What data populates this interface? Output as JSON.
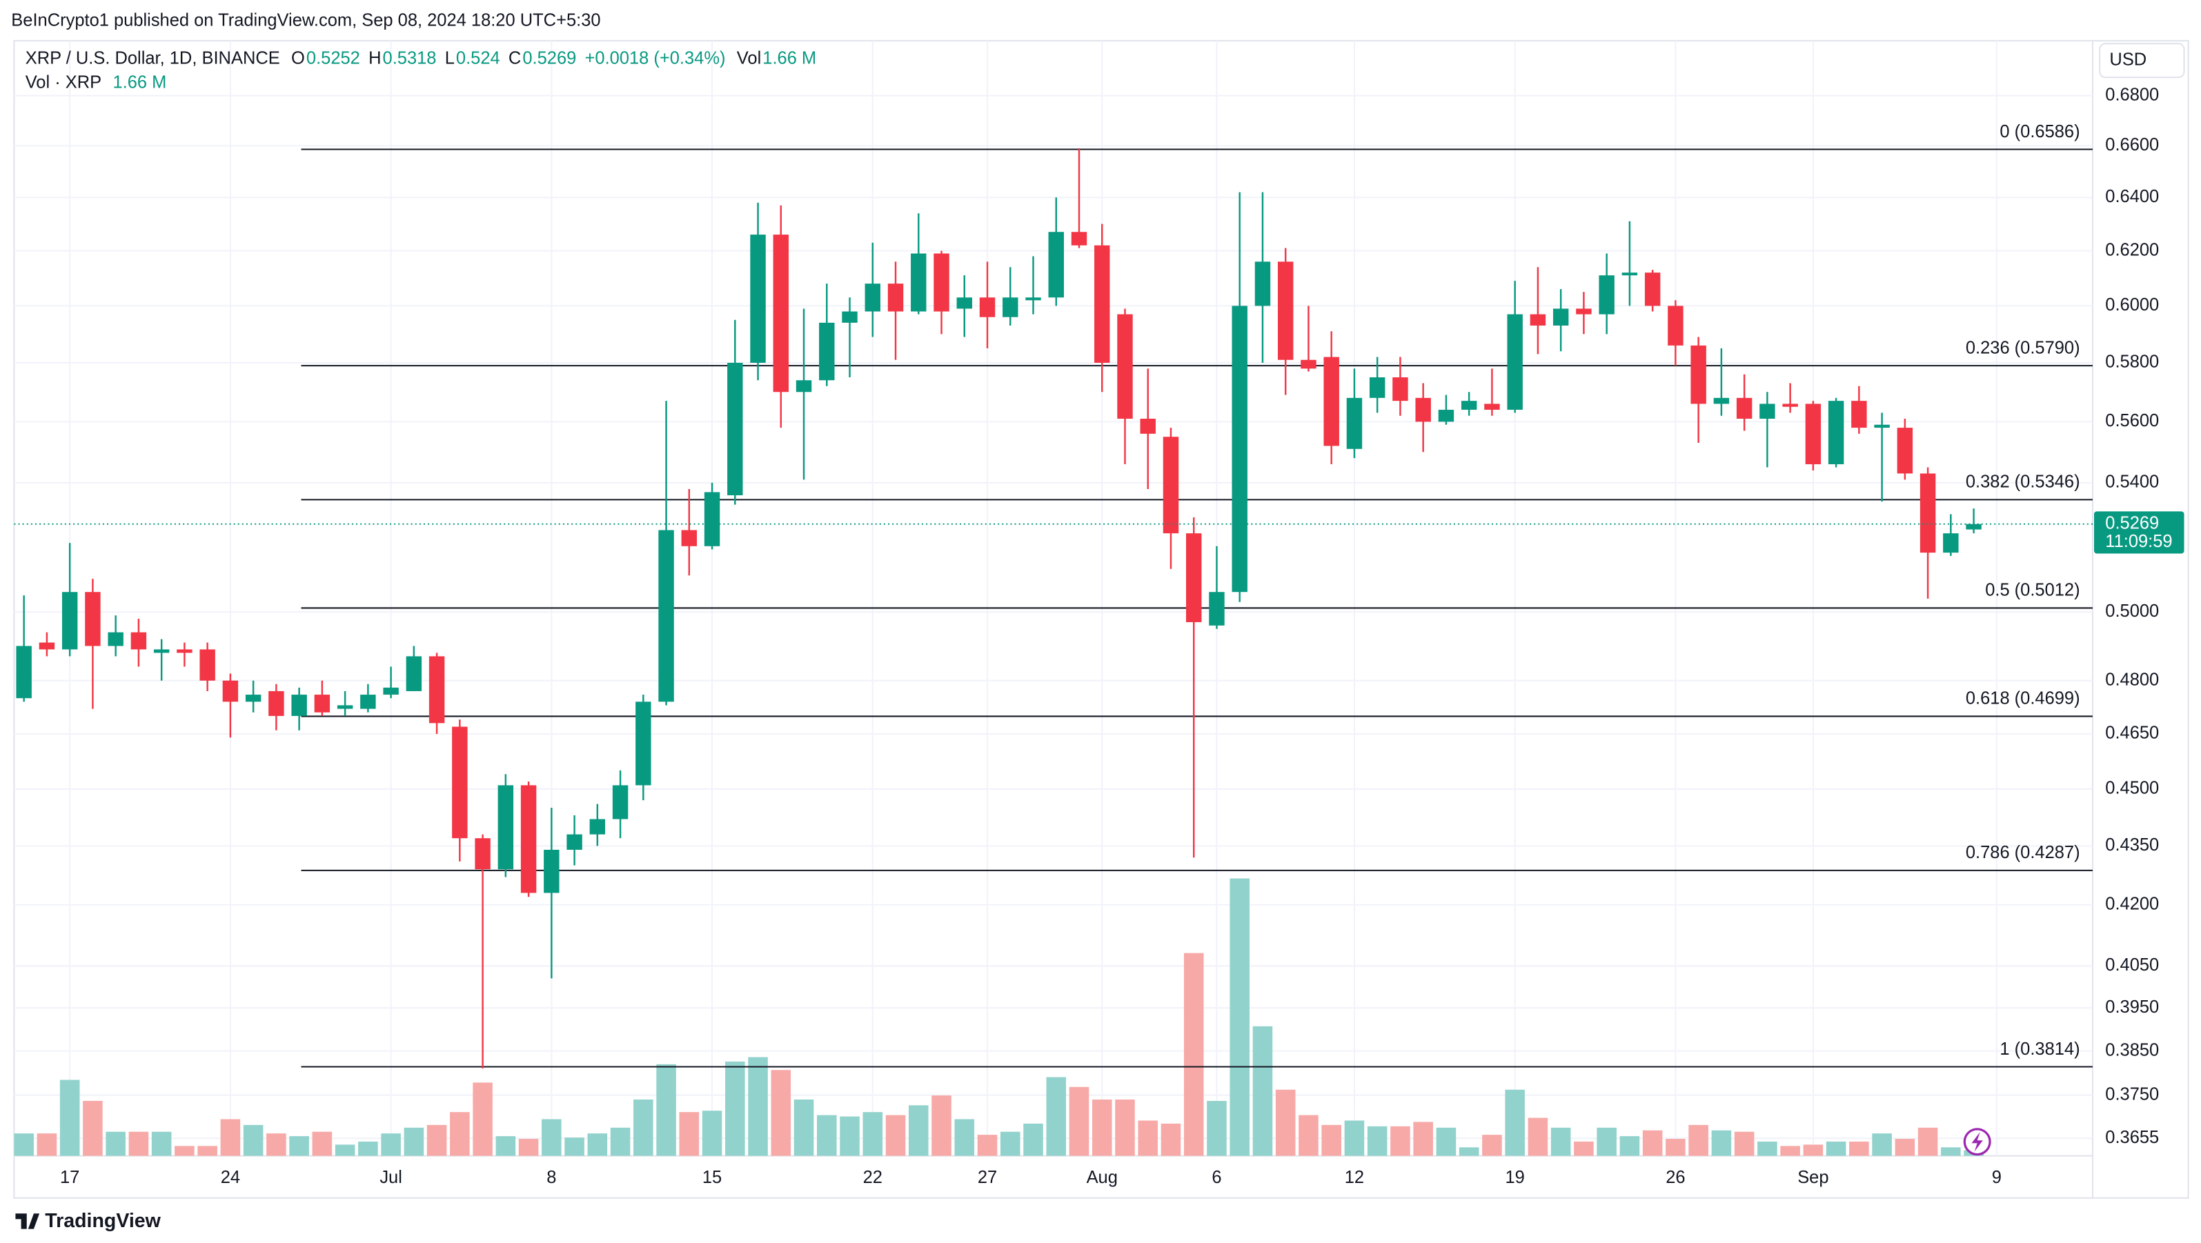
{
  "attribution": "BeInCrypto1 published on TradingView.com, Sep 08, 2024 18:20 UTC+5:30",
  "brand": "TradingView",
  "currency_button": "USD",
  "chart_data": {
    "type": "candlestick",
    "symbol": "XRP / U.S. Dollar, 1D, BINANCE",
    "ohlc_labels": {
      "open": "O",
      "high": "H",
      "low": "L",
      "close": "C",
      "volume": "Vol"
    },
    "change": "+0.0018 (+0.34%)",
    "volume_title": "Vol · XRP",
    "volume_label": "1.66 M",
    "countdown": "11:09:59",
    "log_scale": true,
    "grid": true,
    "up_color": "#089981",
    "down_color": "#f23645",
    "volume_up_color": "#92d2cc",
    "volume_down_color": "#f7a9a7",
    "ylim": [
      0.3617,
      0.702
    ],
    "yticks": [
      {
        "value": 0.68,
        "label": "0.6800"
      },
      {
        "value": 0.66,
        "label": "0.6600"
      },
      {
        "value": 0.64,
        "label": "0.6400"
      },
      {
        "value": 0.62,
        "label": "0.6200"
      },
      {
        "value": 0.6,
        "label": "0.6000"
      },
      {
        "value": 0.58,
        "label": "0.5800"
      },
      {
        "value": 0.56,
        "label": "0.5600"
      },
      {
        "value": 0.54,
        "label": "0.5400"
      },
      {
        "value": 0.5,
        "label": "0.5000"
      },
      {
        "value": 0.48,
        "label": "0.4800"
      },
      {
        "value": 0.465,
        "label": "0.4650"
      },
      {
        "value": 0.45,
        "label": "0.4500"
      },
      {
        "value": 0.435,
        "label": "0.4350"
      },
      {
        "value": 0.42,
        "label": "0.4200"
      },
      {
        "value": 0.405,
        "label": "0.4050"
      },
      {
        "value": 0.395,
        "label": "0.3950"
      },
      {
        "value": 0.385,
        "label": "0.3850"
      },
      {
        "value": 0.375,
        "label": "0.3750"
      },
      {
        "value": 0.3655,
        "label": "0.3655"
      }
    ],
    "xticks": [
      {
        "value": 2,
        "label": "17"
      },
      {
        "value": 9,
        "label": "24"
      },
      {
        "value": 16,
        "label": "Jul"
      },
      {
        "value": 23,
        "label": "8"
      },
      {
        "value": 30,
        "label": "15"
      },
      {
        "value": 37,
        "label": "22"
      },
      {
        "value": 42,
        "label": "27"
      },
      {
        "value": 47,
        "label": "Aug"
      },
      {
        "value": 52,
        "label": "6"
      },
      {
        "value": 58,
        "label": "12"
      },
      {
        "value": 65,
        "label": "19"
      },
      {
        "value": 72,
        "label": "26"
      },
      {
        "value": 78,
        "label": "Sep"
      },
      {
        "value": 86,
        "label": "9"
      }
    ],
    "fib_levels": [
      {
        "label": "0 (0.6586)",
        "value": 0.6586
      },
      {
        "label": "0.236 (0.5790)",
        "value": 0.579
      },
      {
        "label": "0.382 (0.5346)",
        "value": 0.5346
      },
      {
        "label": "0.5 (0.5012)",
        "value": 0.5012
      },
      {
        "label": "0.618 (0.4699)",
        "value": 0.4699
      },
      {
        "label": "0.786 (0.4287)",
        "value": 0.4287
      },
      {
        "label": "1 (0.3814)",
        "value": 0.3814
      }
    ],
    "open": [
      0.475,
      0.491,
      0.489,
      0.506,
      0.49,
      0.494,
      0.488,
      0.489,
      0.489,
      0.48,
      0.474,
      0.477,
      0.47,
      0.476,
      0.472,
      0.472,
      0.476,
      0.477,
      0.487,
      0.467,
      0.437,
      0.429,
      0.451,
      0.423,
      0.434,
      0.438,
      0.442,
      0.451,
      0.474,
      0.525,
      0.52,
      0.536,
      0.58,
      0.626,
      0.57,
      0.574,
      0.594,
      0.598,
      0.608,
      0.598,
      0.619,
      0.599,
      0.603,
      0.596,
      0.602,
      0.603,
      0.627,
      0.622,
      0.597,
      0.561,
      0.555,
      0.524,
      0.496,
      0.506,
      0.6,
      0.616,
      0.581,
      0.582,
      0.551,
      0.568,
      0.575,
      0.568,
      0.56,
      0.564,
      0.566,
      0.564,
      0.597,
      0.593,
      0.599,
      0.597,
      0.611,
      0.612,
      0.6,
      0.586,
      0.566,
      0.568,
      0.561,
      0.566,
      0.566,
      0.546,
      0.567,
      0.558,
      0.558,
      0.543,
      0.518,
      0.5252
    ],
    "high": [
      0.505,
      0.494,
      0.521,
      0.51,
      0.499,
      0.498,
      0.492,
      0.491,
      0.491,
      0.482,
      0.48,
      0.479,
      0.478,
      0.48,
      0.477,
      0.479,
      0.484,
      0.49,
      0.488,
      0.469,
      0.438,
      0.454,
      0.452,
      0.445,
      0.443,
      0.446,
      0.455,
      0.476,
      0.567,
      0.538,
      0.54,
      0.595,
      0.638,
      0.637,
      0.599,
      0.608,
      0.603,
      0.623,
      0.616,
      0.634,
      0.62,
      0.611,
      0.616,
      0.614,
      0.618,
      0.64,
      0.659,
      0.63,
      0.599,
      0.578,
      0.558,
      0.529,
      0.52,
      0.642,
      0.642,
      0.621,
      0.6,
      0.591,
      0.578,
      0.582,
      0.582,
      0.573,
      0.569,
      0.57,
      0.578,
      0.609,
      0.614,
      0.606,
      0.605,
      0.619,
      0.631,
      0.613,
      0.602,
      0.589,
      0.585,
      0.576,
      0.57,
      0.573,
      0.567,
      0.568,
      0.572,
      0.563,
      0.561,
      0.545,
      0.53,
      0.5318
    ],
    "low": [
      0.474,
      0.487,
      0.487,
      0.472,
      0.487,
      0.484,
      0.48,
      0.484,
      0.477,
      0.464,
      0.471,
      0.466,
      0.466,
      0.47,
      0.47,
      0.471,
      0.475,
      0.477,
      0.465,
      0.431,
      0.381,
      0.427,
      0.422,
      0.402,
      0.43,
      0.435,
      0.437,
      0.447,
      0.473,
      0.511,
      0.519,
      0.533,
      0.574,
      0.558,
      0.541,
      0.572,
      0.575,
      0.589,
      0.581,
      0.597,
      0.59,
      0.589,
      0.585,
      0.593,
      0.597,
      0.6,
      0.621,
      0.57,
      0.546,
      0.538,
      0.513,
      0.432,
      0.495,
      0.503,
      0.58,
      0.569,
      0.577,
      0.546,
      0.548,
      0.563,
      0.562,
      0.55,
      0.559,
      0.562,
      0.562,
      0.563,
      0.583,
      0.584,
      0.59,
      0.59,
      0.6,
      0.598,
      0.579,
      0.553,
      0.562,
      0.557,
      0.545,
      0.563,
      0.544,
      0.545,
      0.556,
      0.534,
      0.541,
      0.504,
      0.517,
      0.524
    ],
    "close": [
      0.49,
      0.489,
      0.506,
      0.49,
      0.494,
      0.489,
      0.489,
      0.488,
      0.48,
      0.474,
      0.476,
      0.47,
      0.476,
      0.471,
      0.473,
      0.476,
      0.478,
      0.487,
      0.468,
      0.437,
      0.429,
      0.451,
      0.423,
      0.434,
      0.438,
      0.442,
      0.451,
      0.474,
      0.525,
      0.52,
      0.537,
      0.58,
      0.626,
      0.57,
      0.574,
      0.594,
      0.598,
      0.608,
      0.598,
      0.619,
      0.598,
      0.603,
      0.596,
      0.603,
      0.603,
      0.627,
      0.622,
      0.58,
      0.561,
      0.556,
      0.524,
      0.497,
      0.506,
      0.6,
      0.616,
      0.581,
      0.578,
      0.552,
      0.568,
      0.575,
      0.567,
      0.56,
      0.564,
      0.567,
      0.564,
      0.597,
      0.593,
      0.599,
      0.597,
      0.611,
      0.612,
      0.6,
      0.586,
      0.566,
      0.568,
      0.561,
      0.566,
      0.565,
      0.546,
      0.567,
      0.558,
      0.559,
      0.543,
      0.518,
      0.524,
      0.5269
    ],
    "volume_ylim": [
      0,
      85
    ],
    "volume": [
      6.6,
      6.6,
      22.4,
      16.2,
      7.1,
      7.1,
      7.1,
      2.9,
      2.9,
      10.8,
      9.1,
      6.6,
      5.8,
      7.1,
      3.3,
      4.2,
      6.6,
      8.3,
      9.1,
      12.9,
      21.6,
      5.8,
      5.0,
      10.8,
      5.4,
      6.6,
      8.3,
      16.6,
      27.0,
      12.9,
      13.3,
      27.8,
      29.1,
      25.3,
      16.6,
      12.0,
      11.6,
      12.9,
      12.0,
      14.9,
      17.8,
      10.8,
      6.2,
      7.1,
      9.5,
      23.2,
      20.3,
      16.6,
      16.6,
      10.4,
      9.5,
      59.8,
      16.2,
      81.8,
      38.2,
      19.5,
      12.0,
      9.1,
      10.4,
      8.7,
      8.7,
      10.0,
      8.3,
      2.5,
      6.2,
      19.5,
      11.2,
      8.3,
      4.2,
      8.3,
      5.8,
      7.5,
      5.0,
      9.1,
      7.5,
      7.1,
      4.2,
      2.9,
      3.3,
      4.2,
      4.2,
      6.6,
      5.0,
      8.3,
      2.5,
      1.66
    ]
  }
}
